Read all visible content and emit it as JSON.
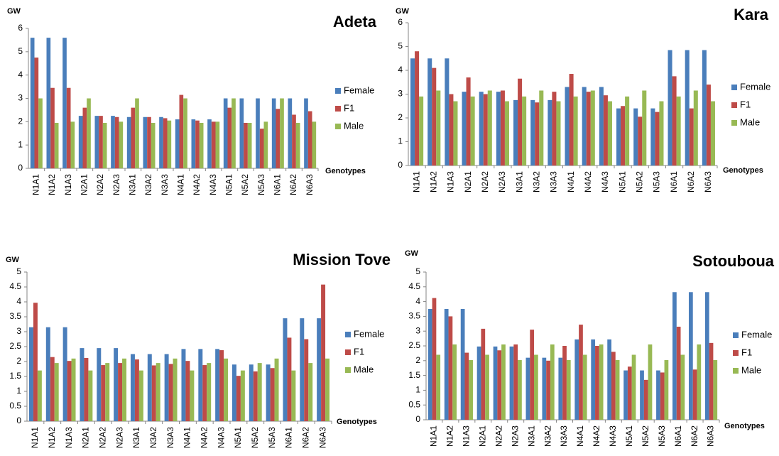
{
  "chart_data": [
    {
      "type": "bar",
      "title": "Adeta",
      "y_label": "GW",
      "x_label": "Genotypes",
      "categories": [
        "N1A1",
        "N1A2",
        "N1A3",
        "N2A1",
        "N2A2",
        "N2A3",
        "N3A1",
        "N3A2",
        "N3A3",
        "N4A1",
        "N4A2",
        "N4A3",
        "N5A1",
        "N5A2",
        "N5A3",
        "N6A1",
        "N6A2",
        "N6A3"
      ],
      "series": [
        {
          "name": "Female",
          "color": "#4a7ebb",
          "values": [
            5.6,
            5.6,
            5.6,
            2.25,
            2.25,
            2.25,
            2.2,
            2.2,
            2.2,
            2.1,
            2.1,
            2.1,
            3,
            3,
            3,
            3,
            3,
            3
          ]
        },
        {
          "name": "F1",
          "color": "#be4b48",
          "values": [
            4.75,
            3.45,
            3.45,
            2.6,
            2.25,
            2.2,
            2.6,
            2.2,
            2.15,
            3.15,
            2.05,
            2.0,
            2.6,
            1.95,
            1.7,
            2.55,
            2.3,
            2.45
          ]
        },
        {
          "name": "Male",
          "color": "#98b954",
          "values": [
            3,
            1.95,
            2,
            3,
            1.95,
            2,
            3,
            1.95,
            2.05,
            3,
            1.95,
            2,
            3,
            1.95,
            2,
            3,
            1.95,
            2
          ]
        }
      ],
      "ylim": [
        0,
        6
      ],
      "yticks": [
        0,
        1,
        2,
        3,
        4,
        5,
        6
      ],
      "legend": "right"
    },
    {
      "type": "bar",
      "title": "Kara",
      "y_label": "GW",
      "x_label": "Genotypes",
      "categories": [
        "N1A1",
        "N1A2",
        "N1A3",
        "N2A1",
        "N2A2",
        "N2A3",
        "N3A1",
        "N3A2",
        "N3A3",
        "N4A1",
        "N4A2",
        "N4A3",
        "N5A1",
        "N5A2",
        "N5A3",
        "N6A1",
        "N6A2",
        "N6A3"
      ],
      "series": [
        {
          "name": "Female",
          "color": "#4a7ebb",
          "values": [
            4.5,
            4.5,
            4.5,
            3.1,
            3.1,
            3.1,
            2.75,
            2.75,
            2.75,
            3.3,
            3.3,
            3.3,
            2.4,
            2.4,
            2.4,
            4.85,
            4.85,
            4.85
          ]
        },
        {
          "name": "F1",
          "color": "#be4b48",
          "values": [
            4.8,
            4.1,
            3.0,
            3.7,
            3.0,
            3.15,
            3.65,
            2.65,
            3.1,
            3.85,
            3.1,
            2.95,
            2.5,
            2.05,
            2.25,
            3.75,
            2.4,
            3.4
          ]
        },
        {
          "name": "Male",
          "color": "#98b954",
          "values": [
            2.9,
            3.15,
            2.7,
            2.9,
            3.15,
            2.7,
            2.9,
            3.15,
            2.7,
            2.9,
            3.15,
            2.7,
            2.9,
            3.15,
            2.7,
            2.9,
            3.15,
            2.7
          ]
        }
      ],
      "ylim": [
        0,
        6
      ],
      "yticks": [
        0,
        1,
        2,
        3,
        4,
        5,
        6
      ],
      "legend": "right"
    },
    {
      "type": "bar",
      "title": "Mission Tove",
      "y_label": "GW",
      "x_label": "Genotypes",
      "categories": [
        "N1A1",
        "N1A2",
        "N1A3",
        "N2A1",
        "N2A2",
        "N2A3",
        "N3A1",
        "N3A2",
        "N3A3",
        "N4A1",
        "N4A2",
        "N4A3",
        "N5A1",
        "N5A2",
        "N5A3",
        "N6A1",
        "N6A2",
        "N6A3"
      ],
      "series": [
        {
          "name": "Female",
          "color": "#4a7ebb",
          "values": [
            3.15,
            3.15,
            3.15,
            2.45,
            2.45,
            2.45,
            2.25,
            2.25,
            2.25,
            2.42,
            2.42,
            2.42,
            1.9,
            1.9,
            1.9,
            3.45,
            3.45,
            3.45
          ]
        },
        {
          "name": "F1",
          "color": "#be4b48",
          "values": [
            3.97,
            2.15,
            2.02,
            2.12,
            1.88,
            1.95,
            2.07,
            1.87,
            1.92,
            2.02,
            1.88,
            2.38,
            1.52,
            1.67,
            1.78,
            2.8,
            2.75,
            4.58
          ]
        },
        {
          "name": "Male",
          "color": "#98b954",
          "values": [
            1.7,
            1.95,
            2.1,
            1.7,
            1.95,
            2.1,
            1.7,
            1.95,
            2.1,
            1.7,
            1.95,
            2.1,
            1.7,
            1.95,
            2.1,
            1.7,
            1.95,
            2.1
          ]
        }
      ],
      "ylim": [
        0,
        5
      ],
      "yticks": [
        0,
        0.5,
        1,
        1.5,
        2,
        2.5,
        3,
        3.5,
        4,
        4.5,
        5
      ],
      "legend": "right"
    },
    {
      "type": "bar",
      "title": "Sotouboua",
      "y_label": "GW",
      "x_label": "Genotypes",
      "categories": [
        "N1A1",
        "N1A2",
        "N1A3",
        "N2A1",
        "N2A2",
        "N2A3",
        "N3A1",
        "N3A2",
        "N3A3",
        "N4A1",
        "N4A2",
        "N4A3",
        "N5A1",
        "N5A2",
        "N5A3",
        "N6A1",
        "N6A2",
        "N6A3"
      ],
      "series": [
        {
          "name": "Female",
          "color": "#4a7ebb",
          "values": [
            3.75,
            3.75,
            3.75,
            2.48,
            2.48,
            2.48,
            2.1,
            2.1,
            2.1,
            2.72,
            2.72,
            2.72,
            1.67,
            1.67,
            1.67,
            4.32,
            4.32,
            4.32
          ]
        },
        {
          "name": "F1",
          "color": "#be4b48",
          "values": [
            4.12,
            3.5,
            2.27,
            3.08,
            2.35,
            2.55,
            3.05,
            2.0,
            2.5,
            3.22,
            2.5,
            2.3,
            1.8,
            1.35,
            1.6,
            3.15,
            1.7,
            2.6
          ]
        },
        {
          "name": "Male",
          "color": "#98b954",
          "values": [
            2.2,
            2.55,
            2.02,
            2.2,
            2.55,
            2.02,
            2.2,
            2.55,
            2.02,
            2.2,
            2.55,
            2.02,
            2.2,
            2.55,
            2.02,
            2.2,
            2.55,
            2.02
          ]
        }
      ],
      "ylim": [
        0,
        5
      ],
      "yticks": [
        0,
        0.5,
        1,
        1.5,
        2,
        2.5,
        3,
        3.5,
        4,
        4.5,
        5
      ],
      "legend": "right"
    }
  ]
}
